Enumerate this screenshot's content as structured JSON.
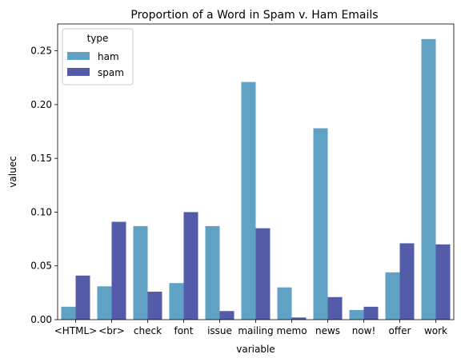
{
  "chart_data": {
    "type": "bar",
    "title": "Proportion of a Word in Spam v. Ham Emails",
    "xlabel": "variable",
    "ylabel": "valuec",
    "categories": [
      "<HTML>",
      "<br>",
      "check",
      "font",
      "issue",
      "mailing",
      "memo",
      "news",
      "now!",
      "offer",
      "work"
    ],
    "series": [
      {
        "name": "ham",
        "color": "#5fa2c4",
        "values": [
          0.012,
          0.031,
          0.087,
          0.034,
          0.087,
          0.221,
          0.03,
          0.178,
          0.009,
          0.044,
          0.261
        ]
      },
      {
        "name": "spam",
        "color": "#545caa",
        "values": [
          0.041,
          0.091,
          0.026,
          0.1,
          0.008,
          0.085,
          0.002,
          0.021,
          0.012,
          0.071,
          0.07
        ]
      }
    ],
    "ylim": [
      0,
      0.275
    ],
    "yticks": [
      0.0,
      0.05,
      0.1,
      0.15,
      0.2,
      0.25
    ],
    "ytick_labels": [
      "0.00",
      "0.05",
      "0.10",
      "0.15",
      "0.20",
      "0.25"
    ],
    "legend": {
      "title": "type",
      "placement": "top-left",
      "entries": [
        "ham",
        "spam"
      ]
    },
    "grid": false
  }
}
